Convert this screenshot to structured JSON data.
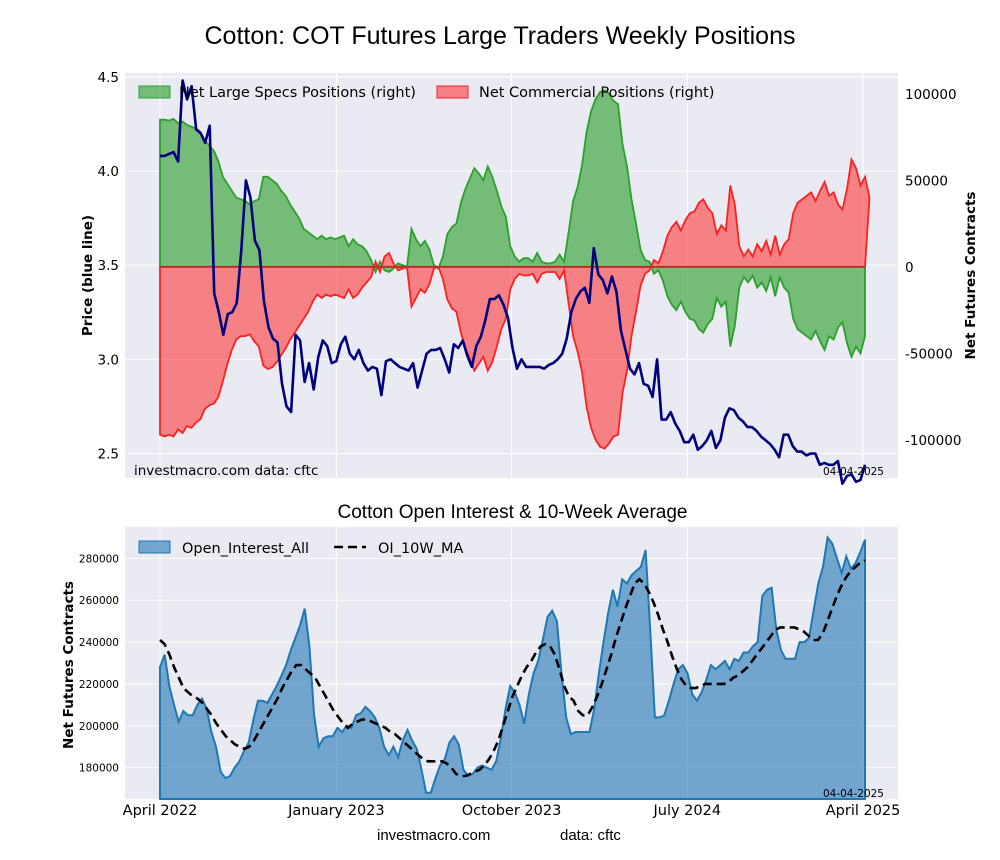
{
  "title": "Cotton: COT Futures Large Traders Weekly Positions",
  "subtitle": "Cotton Open Interest & 10-Week Average",
  "footer": {
    "left": "investmacro.com",
    "right": "data: cftc"
  },
  "chart_data": [
    {
      "type": "area",
      "panel": "top",
      "watermark": {
        "left": "investmacro.com   data: cftc",
        "right": "04-04-2025"
      },
      "ylabel_left": "Price (blue line)",
      "ylabel_right": "Net Futures Contracts",
      "ylim_left": [
        2.37,
        4.52
      ],
      "ylim_right": [
        -122000,
        112000
      ],
      "yticks_left": [
        "2.5",
        "3.0",
        "3.5",
        "4.0",
        "4.5"
      ],
      "yticks_right": [
        "-100000",
        "-50000",
        "0",
        "50000",
        "100000"
      ],
      "x_start": "2022-04-01",
      "x_end": "2025-04-04",
      "grid": true,
      "legend": "top-left",
      "colors": {
        "spec": "#2ca02c",
        "comm": "#ff2020",
        "price": "#00007f"
      },
      "series": [
        {
          "name": "Net Large Specs Positions (right)",
          "values": [
            85000,
            85000,
            84500,
            85500,
            83000,
            84000,
            82000,
            81000,
            80000,
            78000,
            73000,
            70000,
            67000,
            61000,
            52000,
            48000,
            44000,
            40000,
            39000,
            38000,
            36000,
            38000,
            39000,
            52000,
            52000,
            50000,
            48000,
            44000,
            41000,
            36000,
            32000,
            28000,
            22000,
            20000,
            18000,
            16000,
            18000,
            16000,
            17000,
            16000,
            17000,
            18000,
            12000,
            16000,
            13000,
            12000,
            9000,
            4000,
            -3000,
            3000,
            -2000,
            -3000,
            -1000,
            2000,
            1000,
            0,
            22000,
            16000,
            12000,
            15000,
            10000,
            1000,
            -1000,
            6000,
            19000,
            23000,
            25000,
            37000,
            45000,
            51000,
            57000,
            54000,
            50000,
            58000,
            52000,
            44000,
            35000,
            29000,
            12000,
            6000,
            3000,
            5000,
            5000,
            3000,
            8000,
            3000,
            2000,
            2000,
            3000,
            7000,
            3000,
            20000,
            38000,
            46000,
            59000,
            78000,
            90000,
            97000,
            101000,
            102000,
            100000,
            96000,
            94000,
            71000,
            58000,
            39000,
            25000,
            10000,
            4000,
            3000,
            -4000,
            -2000,
            -8000,
            -17000,
            -22000,
            -25000,
            -20000,
            -26000,
            -30000,
            -31000,
            -36000,
            -38000,
            -33000,
            -30000,
            -18000,
            -23000,
            -20000,
            -46000,
            -34000,
            -12000,
            -6000,
            -9000,
            -5000,
            -12000,
            -9000,
            -14000,
            -6000,
            -17000,
            -6000,
            -12000,
            -15000,
            -30000,
            -36000,
            -38000,
            -40000,
            -42000,
            -37000,
            -43000,
            -48000,
            -40000,
            -42000,
            -35000,
            -32000,
            -44000,
            -52000,
            -46000,
            -50000,
            -40000
          ],
          "approx": true
        },
        {
          "name": "Net Commercial Positions (right)",
          "values": [
            -97000,
            -98000,
            -97000,
            -98000,
            -94000,
            -96000,
            -92000,
            -93000,
            -90000,
            -88000,
            -82000,
            -80000,
            -79000,
            -75000,
            -66000,
            -56000,
            -48000,
            -42000,
            -40000,
            -40000,
            -39000,
            -43000,
            -46000,
            -57000,
            -59000,
            -58000,
            -55000,
            -51000,
            -47000,
            -42000,
            -38000,
            -34000,
            -30000,
            -26000,
            -20000,
            -16000,
            -18000,
            -16000,
            -17000,
            -16000,
            -17000,
            -18000,
            -13000,
            -18000,
            -16000,
            -12000,
            -9000,
            -6000,
            3000,
            -3000,
            6000,
            8000,
            2000,
            -2000,
            -1000,
            0,
            -23000,
            -18000,
            -13000,
            -15000,
            -10000,
            -1000,
            0,
            -7000,
            -19000,
            -24000,
            -26000,
            -38000,
            -47000,
            -53000,
            -60000,
            -56000,
            -52000,
            -60000,
            -55000,
            -46000,
            -36000,
            -30000,
            -13000,
            -7000,
            -4000,
            -5000,
            -5000,
            -4000,
            -9000,
            -4000,
            -3000,
            -3000,
            -3000,
            -7000,
            -2000,
            -21000,
            -40000,
            -49000,
            -61000,
            -81000,
            -93000,
            -100000,
            -104000,
            -105000,
            -102000,
            -98000,
            -97000,
            -73000,
            -60000,
            -40000,
            -26000,
            -11000,
            -4000,
            -2000,
            4000,
            2000,
            9000,
            18000,
            23000,
            26000,
            21000,
            27000,
            31000,
            32000,
            37000,
            39000,
            34000,
            31000,
            19000,
            24000,
            21000,
            47000,
            36000,
            12000,
            6000,
            10000,
            6000,
            13000,
            9000,
            15000,
            7000,
            18000,
            7000,
            13000,
            16000,
            31000,
            37000,
            39000,
            41000,
            43000,
            38000,
            44000,
            49000,
            41000,
            43000,
            36000,
            33000,
            45000,
            62000,
            57000,
            47000,
            52000,
            40000
          ],
          "approx": true
        },
        {
          "name": "Price",
          "axis": "left",
          "values": [
            4.08,
            4.08,
            4.09,
            4.1,
            4.05,
            4.48,
            4.38,
            4.45,
            4.22,
            4.2,
            4.15,
            4.24,
            3.35,
            3.25,
            3.13,
            3.24,
            3.25,
            3.3,
            3.58,
            3.95,
            3.86,
            3.63,
            3.58,
            3.31,
            3.17,
            3.11,
            3.09,
            2.87,
            2.75,
            2.72,
            3.13,
            3.1,
            2.88,
            2.98,
            2.84,
            3.01,
            3.1,
            3.07,
            2.98,
            2.99,
            3.08,
            3.12,
            3.03,
            3.0,
            3.05,
            2.98,
            2.94,
            2.96,
            2.95,
            2.81,
            2.99,
            3.0,
            2.98,
            2.96,
            2.95,
            2.94,
            2.98,
            2.85,
            2.94,
            3.03,
            3.05,
            3.05,
            3.06,
            3.0,
            2.93,
            3.08,
            3.06,
            3.1,
            3.02,
            2.96,
            3.07,
            3.12,
            3.21,
            3.32,
            3.32,
            3.34,
            3.29,
            3.22,
            3.06,
            2.95,
            3.0,
            2.96,
            2.96,
            2.96,
            2.96,
            2.95,
            2.97,
            2.98,
            3.0,
            3.03,
            3.11,
            3.25,
            3.32,
            3.36,
            3.38,
            3.3,
            3.59,
            3.45,
            3.42,
            3.35,
            3.44,
            3.36,
            3.15,
            3.05,
            2.95,
            2.92,
            2.98,
            2.87,
            2.86,
            2.8,
            3.0,
            2.68,
            2.68,
            2.72,
            2.66,
            2.62,
            2.56,
            2.56,
            2.6,
            2.52,
            2.54,
            2.57,
            2.62,
            2.53,
            2.57,
            2.69,
            2.74,
            2.73,
            2.69,
            2.67,
            2.64,
            2.64,
            2.62,
            2.59,
            2.57,
            2.55,
            2.52,
            2.48,
            2.6,
            2.6,
            2.54,
            2.51,
            2.51,
            2.49,
            2.5,
            2.5,
            2.44,
            2.45,
            2.44,
            2.44,
            2.46,
            2.34,
            2.38,
            2.39,
            2.35,
            2.36,
            2.44
          ],
          "approx": true
        }
      ]
    },
    {
      "type": "area",
      "panel": "bottom",
      "watermark": {
        "right": "04-04-2025"
      },
      "ylabel": "Net Futures Contracts",
      "ylim": [
        165000,
        295000
      ],
      "yticks": [
        "180000",
        "200000",
        "220000",
        "240000",
        "260000",
        "280000"
      ],
      "x_start": "2022-04-01",
      "x_end": "2025-04-04",
      "xticks": [
        {
          "label": "April 2022",
          "date": "2022-04-01"
        },
        {
          "label": "January 2023",
          "date": "2023-01-01"
        },
        {
          "label": "October 2023",
          "date": "2023-10-01"
        },
        {
          "label": "July 2024",
          "date": "2024-07-01"
        },
        {
          "label": "April 2025",
          "date": "2025-04-01"
        }
      ],
      "grid": true,
      "legend": "top-left",
      "colors": {
        "oi": "#1f77b4",
        "ma": "#000000"
      },
      "series": [
        {
          "name": "Open_Interest_All",
          "values": [
            228000,
            234000,
            219000,
            210000,
            202000,
            207000,
            205000,
            205000,
            210000,
            213000,
            208000,
            197000,
            190000,
            178000,
            175000,
            176000,
            180000,
            183000,
            188000,
            192000,
            203000,
            212000,
            212000,
            211000,
            215000,
            219000,
            224000,
            229000,
            236000,
            242000,
            248000,
            256000,
            238000,
            205000,
            190000,
            194000,
            195000,
            195000,
            199000,
            197000,
            200000,
            199000,
            205000,
            206000,
            209000,
            207000,
            204000,
            199000,
            190000,
            186000,
            190000,
            185000,
            193000,
            198000,
            193000,
            189000,
            179000,
            168000,
            168000,
            175000,
            181000,
            184000,
            192000,
            195000,
            191000,
            179000,
            176000,
            177000,
            180000,
            181000,
            180000,
            179000,
            183000,
            194000,
            208000,
            219000,
            216000,
            210000,
            201000,
            215000,
            225000,
            231000,
            241000,
            252000,
            255000,
            250000,
            225000,
            204000,
            196000,
            197000,
            197000,
            197000,
            197000,
            208000,
            225000,
            240000,
            254000,
            265000,
            257000,
            270000,
            268000,
            272000,
            274000,
            276000,
            284000,
            246000,
            204000,
            204000,
            205000,
            212000,
            220000,
            227000,
            229000,
            225000,
            215000,
            212000,
            216000,
            222000,
            229000,
            227000,
            229000,
            231000,
            227000,
            232000,
            231000,
            235000,
            235000,
            238000,
            240000,
            262000,
            265000,
            266000,
            246000,
            236000,
            232000,
            232000,
            232000,
            240000,
            240000,
            242000,
            255000,
            268000,
            276000,
            290000,
            287000,
            280000,
            273000,
            281000,
            275000,
            278000,
            283000,
            289000
          ],
          "approx": true
        },
        {
          "name": "OI_10W_MA",
          "values": [
            241000,
            239000,
            234000,
            228000,
            223000,
            218000,
            216000,
            214000,
            213000,
            211000,
            208000,
            205000,
            201000,
            198000,
            195000,
            193000,
            191000,
            190000,
            189000,
            190000,
            193000,
            197000,
            201000,
            205000,
            209000,
            213000,
            218000,
            222000,
            226000,
            229000,
            229000,
            227000,
            225000,
            223000,
            219000,
            215000,
            211000,
            207000,
            204000,
            201000,
            199000,
            201000,
            202000,
            203000,
            203000,
            202000,
            201000,
            200000,
            199000,
            197000,
            196000,
            194000,
            192000,
            190000,
            188000,
            186000,
            184000,
            183000,
            183000,
            183000,
            183000,
            182000,
            180000,
            177000,
            176000,
            176000,
            177000,
            178000,
            179000,
            181000,
            184000,
            188000,
            193000,
            200000,
            207000,
            214000,
            219000,
            224000,
            228000,
            231000,
            235000,
            238000,
            239000,
            238000,
            234000,
            227000,
            219000,
            214000,
            212000,
            207000,
            205000,
            205000,
            209000,
            214000,
            220000,
            227000,
            234000,
            242000,
            249000,
            256000,
            262000,
            268000,
            270000,
            268000,
            264000,
            259000,
            253000,
            246000,
            240000,
            233000,
            227000,
            222000,
            219000,
            218000,
            218000,
            219000,
            220000,
            220000,
            220000,
            220000,
            220000,
            221000,
            223000,
            224000,
            226000,
            228000,
            231000,
            234000,
            237000,
            240000,
            243000,
            246000,
            247000,
            247000,
            247000,
            247000,
            246000,
            245000,
            243000,
            241000,
            241000,
            244000,
            250000,
            256000,
            262000,
            267000,
            271000,
            274000,
            276000,
            278000,
            279000
          ],
          "approx": true
        }
      ]
    }
  ]
}
